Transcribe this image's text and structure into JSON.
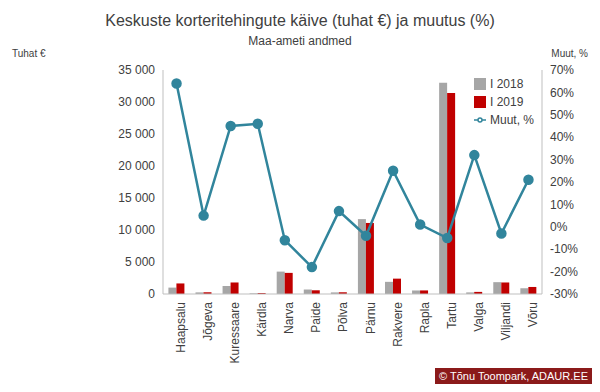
{
  "chart_data": {
    "type": "bar",
    "title": "Keskuste korteritehingute käive (tuhat €) ja muutus (%)",
    "subtitle": "Maa-ameti andmed",
    "y_label": "Tuhat €",
    "y2_label": "Muut, %",
    "annotations": [
      "© Tõnu Toompark, ADAUR.EE"
    ],
    "categories": [
      "Haapsalu",
      "Jõgeva",
      "Kuressaare",
      "Kärdla",
      "Narva",
      "Paide",
      "Põlva",
      "Pärnu",
      "Rakvere",
      "Rapla",
      "Tartu",
      "Valga",
      "Viljandi",
      "Võru"
    ],
    "series": [
      {
        "name": "I 2018",
        "type": "bar",
        "color": "#a6a6a6",
        "values": [
          1000,
          250,
          1250,
          100,
          3500,
          700,
          250,
          11700,
          1900,
          550,
          33000,
          250,
          1850,
          900
        ]
      },
      {
        "name": "I 2019",
        "type": "bar",
        "color": "#c00000",
        "values": [
          1650,
          270,
          1800,
          150,
          3300,
          580,
          270,
          11100,
          2400,
          560,
          31400,
          330,
          1800,
          1100
        ]
      },
      {
        "name": "Muut, %",
        "type": "line",
        "axis": "y2",
        "color": "#31859c",
        "marker": "circle",
        "values": [
          64,
          5,
          45,
          46,
          -6,
          -18,
          7,
          -4,
          25,
          1,
          -5,
          32,
          -3,
          21
        ]
      }
    ],
    "ylim": [
      0,
      35000
    ],
    "yticks": [
      0,
      {
        "value": 5000,
        "label": "5 000"
      },
      {
        "value": 10000,
        "label": "10 000"
      },
      {
        "value": 15000,
        "label": "15 000"
      },
      {
        "value": 20000,
        "label": "20 000"
      },
      {
        "value": 25000,
        "label": "25 000"
      },
      {
        "value": 30000,
        "label": "30 000"
      },
      {
        "value": 35000,
        "label": "35 000"
      }
    ],
    "y2lim": [
      -30,
      70
    ],
    "y2ticks": [
      {
        "value": -30,
        "label": "-30%"
      },
      {
        "value": -20,
        "label": "-20%"
      },
      {
        "value": -10,
        "label": "-10%"
      },
      {
        "value": 0,
        "label": "0%"
      },
      {
        "value": 10,
        "label": "10%"
      },
      {
        "value": 20,
        "label": "20%"
      },
      {
        "value": 30,
        "label": "30%"
      },
      {
        "value": 40,
        "label": "40%"
      },
      {
        "value": 50,
        "label": "50%"
      },
      {
        "value": 60,
        "label": "60%"
      },
      {
        "value": 70,
        "label": "70%"
      }
    ],
    "grid": false,
    "legend": "upper right"
  }
}
